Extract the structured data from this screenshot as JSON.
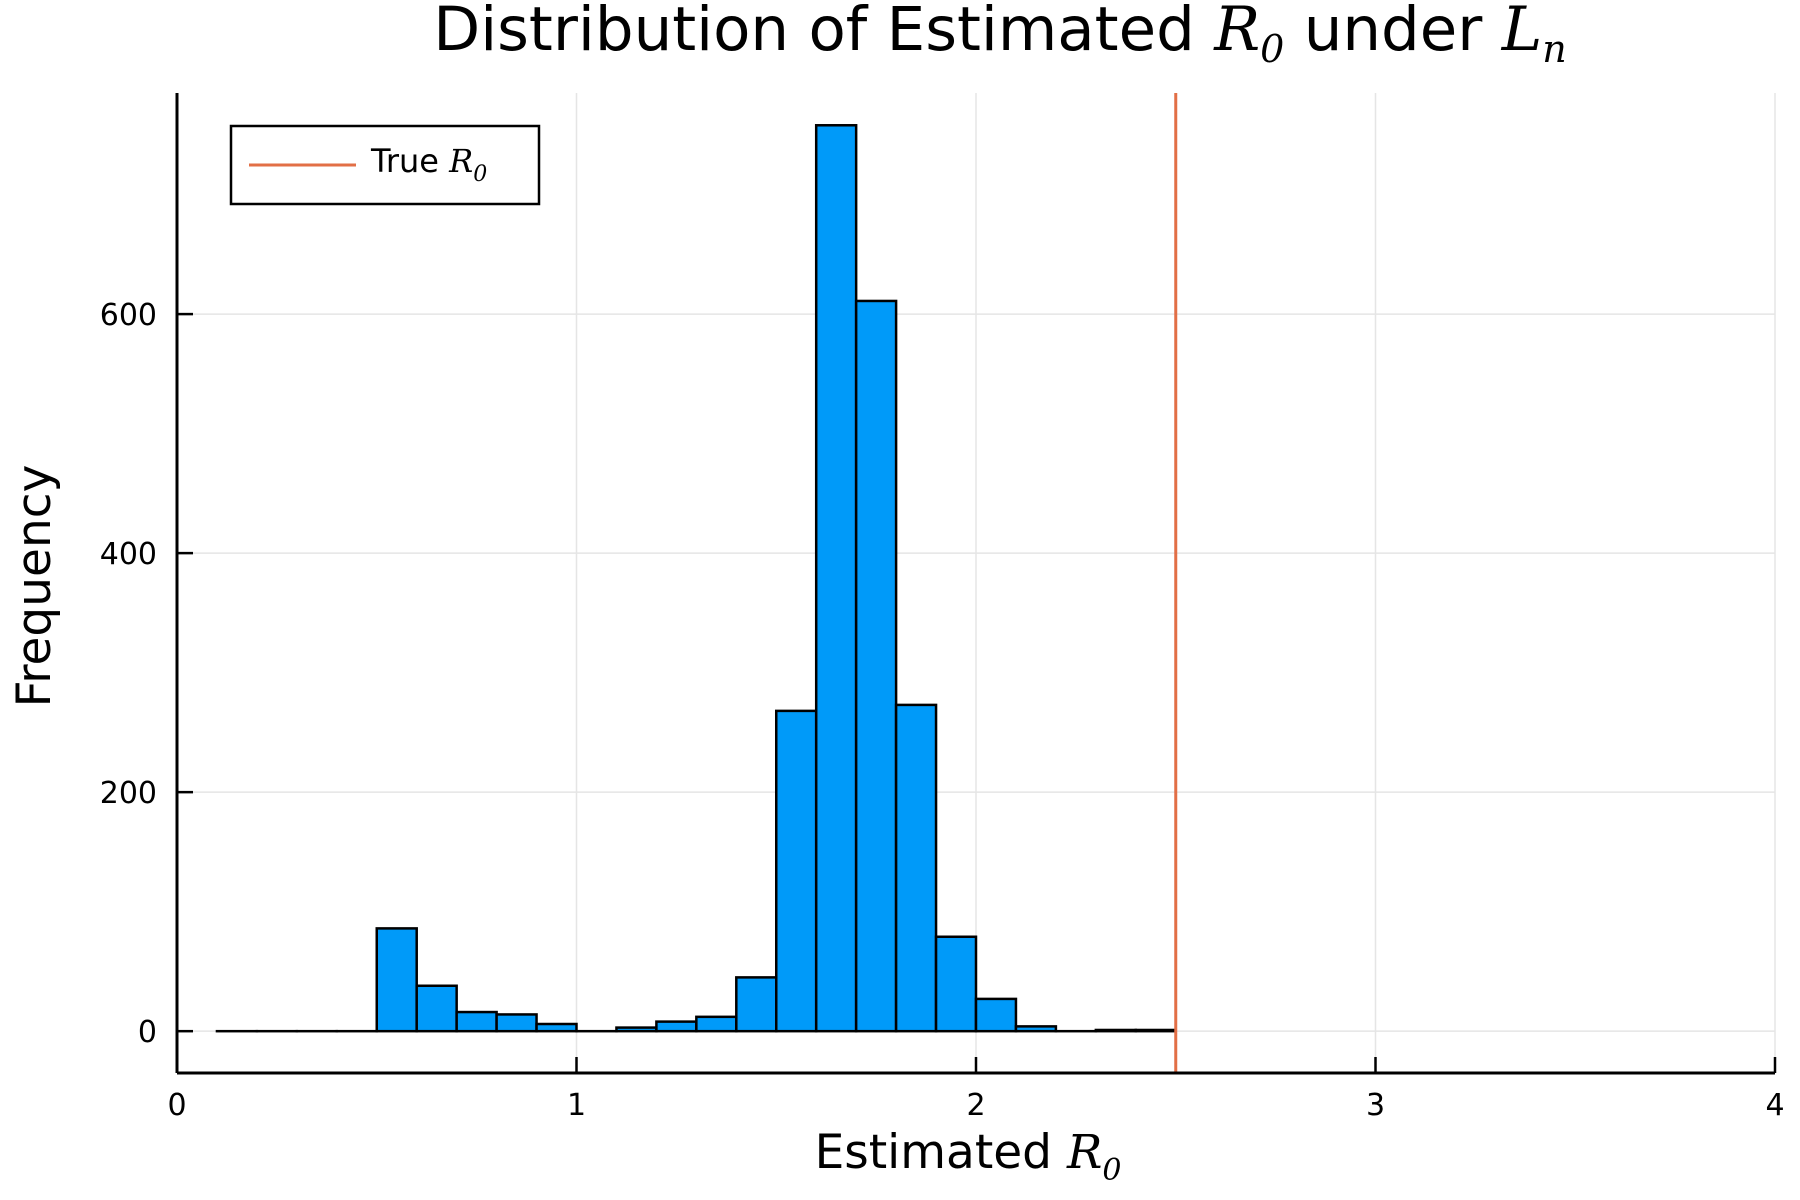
{
  "chart_data": {
    "type": "bar",
    "title": {
      "prefix": "Distribution of Estimated ",
      "sym1": "R",
      "sub1": "0",
      "mid": " under ",
      "sym2": "L",
      "sub2": "n"
    },
    "xlabel": {
      "prefix": "Estimated ",
      "sym": "R",
      "sub": "0"
    },
    "ylabel": "Frequency",
    "xlim": [
      0,
      4
    ],
    "ylim": [
      -35,
      785
    ],
    "xticks": [
      "0",
      "1",
      "2",
      "3",
      "4"
    ],
    "xtick_values": [
      0,
      1,
      2,
      3,
      4
    ],
    "yticks": [
      "0",
      "200",
      "400",
      "600"
    ],
    "ytick_values": [
      0,
      200,
      400,
      600
    ],
    "grid": true,
    "bin_width": 0.1,
    "bins": [
      {
        "x0": 0.1,
        "count": 0
      },
      {
        "x0": 0.2,
        "count": 0
      },
      {
        "x0": 0.3,
        "count": 0
      },
      {
        "x0": 0.4,
        "count": 0
      },
      {
        "x0": 0.5,
        "count": 86
      },
      {
        "x0": 0.6,
        "count": 38
      },
      {
        "x0": 0.7,
        "count": 16
      },
      {
        "x0": 0.8,
        "count": 14
      },
      {
        "x0": 0.9,
        "count": 6
      },
      {
        "x0": 1.0,
        "count": 0
      },
      {
        "x0": 1.1,
        "count": 3
      },
      {
        "x0": 1.2,
        "count": 8
      },
      {
        "x0": 1.3,
        "count": 12
      },
      {
        "x0": 1.4,
        "count": 45
      },
      {
        "x0": 1.5,
        "count": 268
      },
      {
        "x0": 1.6,
        "count": 758
      },
      {
        "x0": 1.7,
        "count": 611
      },
      {
        "x0": 1.8,
        "count": 273
      },
      {
        "x0": 1.9,
        "count": 79
      },
      {
        "x0": 2.0,
        "count": 27
      },
      {
        "x0": 2.1,
        "count": 4
      },
      {
        "x0": 2.2,
        "count": 0
      },
      {
        "x0": 2.3,
        "count": 1
      },
      {
        "x0": 2.4,
        "count": 1
      }
    ],
    "bar_color": "#009af9",
    "vline": {
      "x": 2.5,
      "color": "#e26f46"
    },
    "legend": {
      "position": "top-left",
      "label_prefix": "True ",
      "sym": "R",
      "sub": "0"
    }
  }
}
